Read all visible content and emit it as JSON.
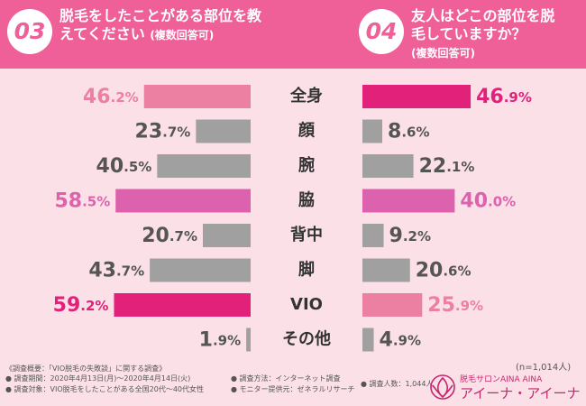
{
  "chart_data": {
    "type": "butterfly-bar",
    "categories": [
      "全身",
      "顔",
      "腕",
      "脇",
      "背中",
      "脚",
      "VIO",
      "その他"
    ],
    "xlim": [
      0,
      100
    ],
    "series": [
      {
        "number": "03",
        "name": "脱毛をしたことがある部位を教えてください",
        "note": "(複数回答可)",
        "values": [
          46.2,
          23.7,
          40.5,
          58.5,
          20.7,
          43.7,
          59.2,
          1.9
        ],
        "value_labels": [
          "46.2%",
          "23.7%",
          "40.5%",
          "58.5%",
          "20.7%",
          "43.7%",
          "59.2%",
          "1.9%"
        ],
        "colors": [
          "#ec80a2",
          "#a0a0a0",
          "#a0a0a0",
          "#dc62ad",
          "#a0a0a0",
          "#a0a0a0",
          "#e2217a",
          "#a0a0a0"
        ]
      },
      {
        "number": "04",
        "name": "友人はどこの部位を脱毛していますか？",
        "note": "(複数回答可)",
        "values": [
          46.9,
          8.6,
          22.1,
          40.0,
          9.2,
          20.6,
          25.9,
          4.9
        ],
        "value_labels": [
          "46.9%",
          "8.6%",
          "22.1%",
          "40.0%",
          "9.2%",
          "20.6%",
          "25.9%",
          "4.9%"
        ],
        "colors": [
          "#e2217a",
          "#a0a0a0",
          "#a0a0a0",
          "#dc62ad",
          "#a0a0a0",
          "#a0a0a0",
          "#ec80a2",
          "#a0a0a0"
        ]
      }
    ]
  },
  "footer": {
    "heading": "《調査概要：「VIO脱毛の失敗談」に関する調査》",
    "items": [
      "調査期間：2020年4月13日(月)〜2020年4月14日(火)",
      "調査対象：VIO脱毛をしたことがある全国20代〜40代女性",
      "調査方法：インターネット調査",
      "モニター提供元：ゼネラルリサーチ",
      "調査人数：1,044人"
    ],
    "sample": "(n=1,014人)",
    "brand_small": "脱毛サロンAINA AINA",
    "brand": "アイーナ・アイーナ"
  }
}
